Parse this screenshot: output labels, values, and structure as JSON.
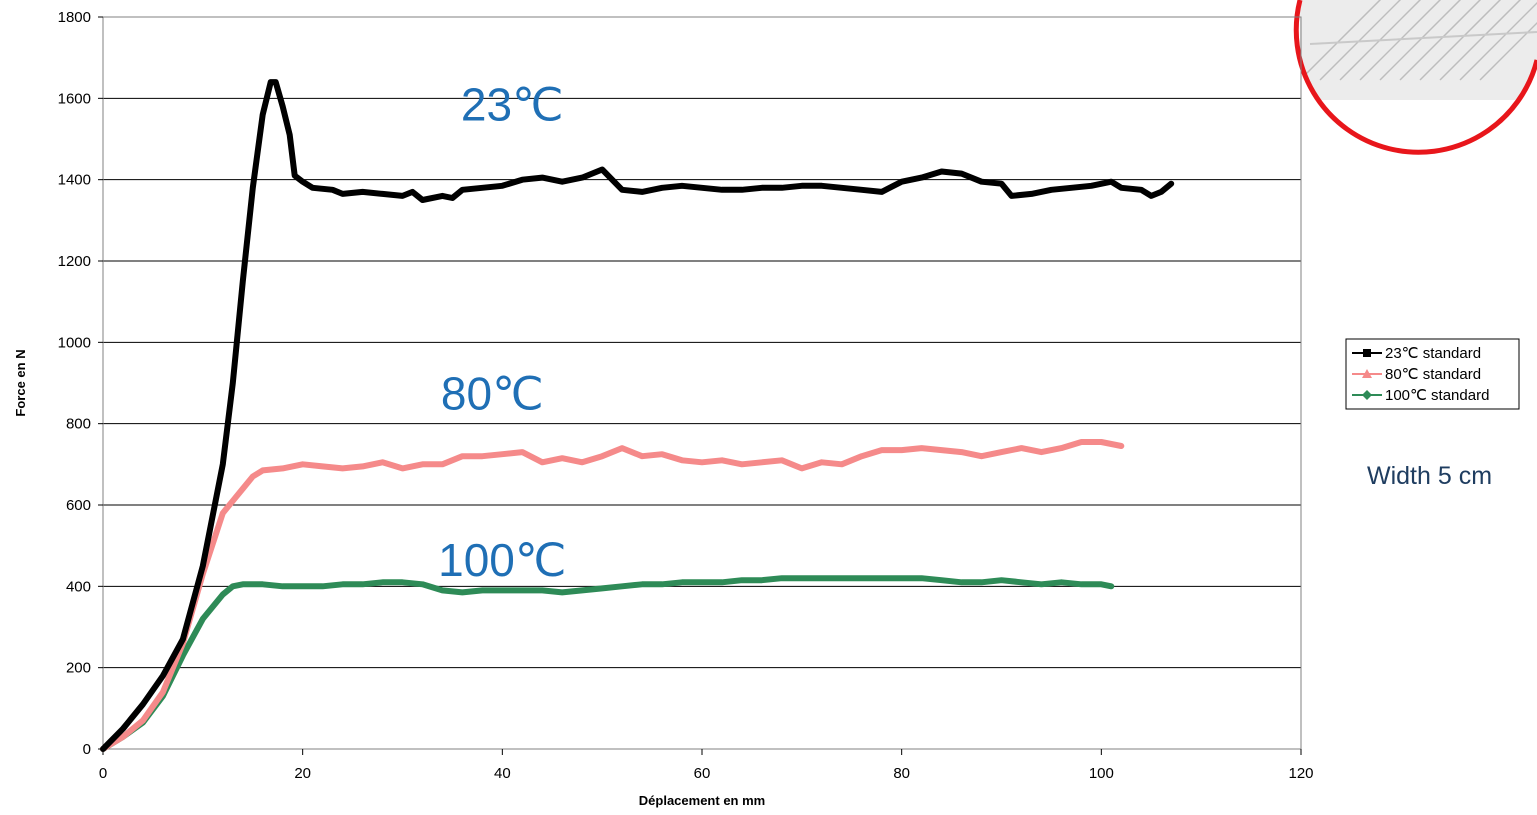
{
  "chart_data": {
    "type": "line",
    "xlabel": "Déplacement en mm",
    "ylabel": "Force en N",
    "xlim": [
      0,
      120
    ],
    "ylim": [
      0,
      1800
    ],
    "x_ticks": [
      "0",
      "20",
      "40",
      "60",
      "80",
      "100",
      "120"
    ],
    "y_ticks": [
      "0",
      "200",
      "400",
      "600",
      "800",
      "1000",
      "1200",
      "1400",
      "1600",
      "1800"
    ],
    "grid": "horizontal",
    "legend_position": "right",
    "series": [
      {
        "name": "23℃ standard",
        "color": "#000000",
        "marker": "square",
        "points": [
          [
            0,
            0
          ],
          [
            2,
            50
          ],
          [
            4,
            110
          ],
          [
            6,
            180
          ],
          [
            8,
            270
          ],
          [
            10,
            450
          ],
          [
            12,
            700
          ],
          [
            13,
            900
          ],
          [
            14,
            1150
          ],
          [
            15,
            1380
          ],
          [
            16,
            1560
          ],
          [
            16.8,
            1640
          ],
          [
            17.3,
            1640
          ],
          [
            18,
            1580
          ],
          [
            18.7,
            1510
          ],
          [
            19.2,
            1410
          ],
          [
            20,
            1395
          ],
          [
            21,
            1380
          ],
          [
            23,
            1375
          ],
          [
            24,
            1365
          ],
          [
            26,
            1370
          ],
          [
            28,
            1365
          ],
          [
            30,
            1360
          ],
          [
            31,
            1370
          ],
          [
            32,
            1350
          ],
          [
            34,
            1360
          ],
          [
            35,
            1355
          ],
          [
            36,
            1375
          ],
          [
            38,
            1380
          ],
          [
            40,
            1385
          ],
          [
            42,
            1400
          ],
          [
            44,
            1405
          ],
          [
            46,
            1395
          ],
          [
            48,
            1405
          ],
          [
            50,
            1425
          ],
          [
            52,
            1375
          ],
          [
            54,
            1370
          ],
          [
            56,
            1380
          ],
          [
            58,
            1385
          ],
          [
            60,
            1380
          ],
          [
            62,
            1375
          ],
          [
            64,
            1375
          ],
          [
            66,
            1380
          ],
          [
            68,
            1380
          ],
          [
            70,
            1385
          ],
          [
            72,
            1385
          ],
          [
            74,
            1380
          ],
          [
            76,
            1375
          ],
          [
            78,
            1370
          ],
          [
            80,
            1395
          ],
          [
            82,
            1405
          ],
          [
            84,
            1420
          ],
          [
            86,
            1415
          ],
          [
            88,
            1395
          ],
          [
            90,
            1390
          ],
          [
            91,
            1360
          ],
          [
            93,
            1365
          ],
          [
            95,
            1375
          ],
          [
            97,
            1380
          ],
          [
            99,
            1385
          ],
          [
            101,
            1395
          ],
          [
            102,
            1380
          ],
          [
            104,
            1375
          ],
          [
            105,
            1360
          ],
          [
            106,
            1370
          ],
          [
            107,
            1390
          ]
        ]
      },
      {
        "name": "80℃ standard",
        "color": "#f58a8a",
        "marker": "triangle",
        "points": [
          [
            0,
            0
          ],
          [
            2,
            30
          ],
          [
            4,
            70
          ],
          [
            6,
            140
          ],
          [
            8,
            260
          ],
          [
            10,
            430
          ],
          [
            12,
            580
          ],
          [
            13,
            610
          ],
          [
            14,
            640
          ],
          [
            15,
            670
          ],
          [
            16,
            685
          ],
          [
            18,
            690
          ],
          [
            20,
            700
          ],
          [
            22,
            695
          ],
          [
            24,
            690
          ],
          [
            26,
            695
          ],
          [
            28,
            705
          ],
          [
            30,
            690
          ],
          [
            32,
            700
          ],
          [
            34,
            700
          ],
          [
            36,
            720
          ],
          [
            38,
            720
          ],
          [
            40,
            725
          ],
          [
            42,
            730
          ],
          [
            44,
            705
          ],
          [
            46,
            715
          ],
          [
            48,
            705
          ],
          [
            50,
            720
          ],
          [
            52,
            740
          ],
          [
            54,
            720
          ],
          [
            56,
            725
          ],
          [
            58,
            710
          ],
          [
            60,
            705
          ],
          [
            62,
            710
          ],
          [
            64,
            700
          ],
          [
            66,
            705
          ],
          [
            68,
            710
          ],
          [
            70,
            690
          ],
          [
            72,
            705
          ],
          [
            74,
            700
          ],
          [
            76,
            720
          ],
          [
            78,
            735
          ],
          [
            80,
            735
          ],
          [
            82,
            740
          ],
          [
            84,
            735
          ],
          [
            86,
            730
          ],
          [
            88,
            720
          ],
          [
            90,
            730
          ],
          [
            92,
            740
          ],
          [
            94,
            730
          ],
          [
            96,
            740
          ],
          [
            98,
            755
          ],
          [
            100,
            755
          ],
          [
            102,
            745
          ]
        ]
      },
      {
        "name": "100℃ standard",
        "color": "#2e8b57",
        "marker": "diamond",
        "points": [
          [
            0,
            0
          ],
          [
            2,
            30
          ],
          [
            4,
            65
          ],
          [
            6,
            130
          ],
          [
            8,
            230
          ],
          [
            10,
            320
          ],
          [
            12,
            380
          ],
          [
            13,
            400
          ],
          [
            14,
            405
          ],
          [
            16,
            405
          ],
          [
            18,
            400
          ],
          [
            20,
            400
          ],
          [
            22,
            400
          ],
          [
            24,
            405
          ],
          [
            26,
            405
          ],
          [
            28,
            410
          ],
          [
            30,
            410
          ],
          [
            32,
            405
          ],
          [
            34,
            390
          ],
          [
            36,
            385
          ],
          [
            38,
            390
          ],
          [
            40,
            390
          ],
          [
            42,
            390
          ],
          [
            44,
            390
          ],
          [
            46,
            385
          ],
          [
            48,
            390
          ],
          [
            50,
            395
          ],
          [
            52,
            400
          ],
          [
            54,
            405
          ],
          [
            56,
            405
          ],
          [
            58,
            410
          ],
          [
            60,
            410
          ],
          [
            62,
            410
          ],
          [
            64,
            415
          ],
          [
            66,
            415
          ],
          [
            68,
            420
          ],
          [
            70,
            420
          ],
          [
            72,
            420
          ],
          [
            74,
            420
          ],
          [
            76,
            420
          ],
          [
            78,
            420
          ],
          [
            80,
            420
          ],
          [
            82,
            420
          ],
          [
            84,
            415
          ],
          [
            86,
            410
          ],
          [
            88,
            410
          ],
          [
            90,
            415
          ],
          [
            92,
            410
          ],
          [
            94,
            405
          ],
          [
            96,
            410
          ],
          [
            98,
            405
          ],
          [
            100,
            405
          ],
          [
            101,
            400
          ]
        ]
      }
    ],
    "annotations": [
      {
        "text": "23℃",
        "x": 41,
        "y": 1545
      },
      {
        "text": "80℃",
        "x": 39,
        "y": 835
      },
      {
        "text": "100℃",
        "x": 40,
        "y": 425
      }
    ]
  },
  "side_note": "Width 5 cm"
}
